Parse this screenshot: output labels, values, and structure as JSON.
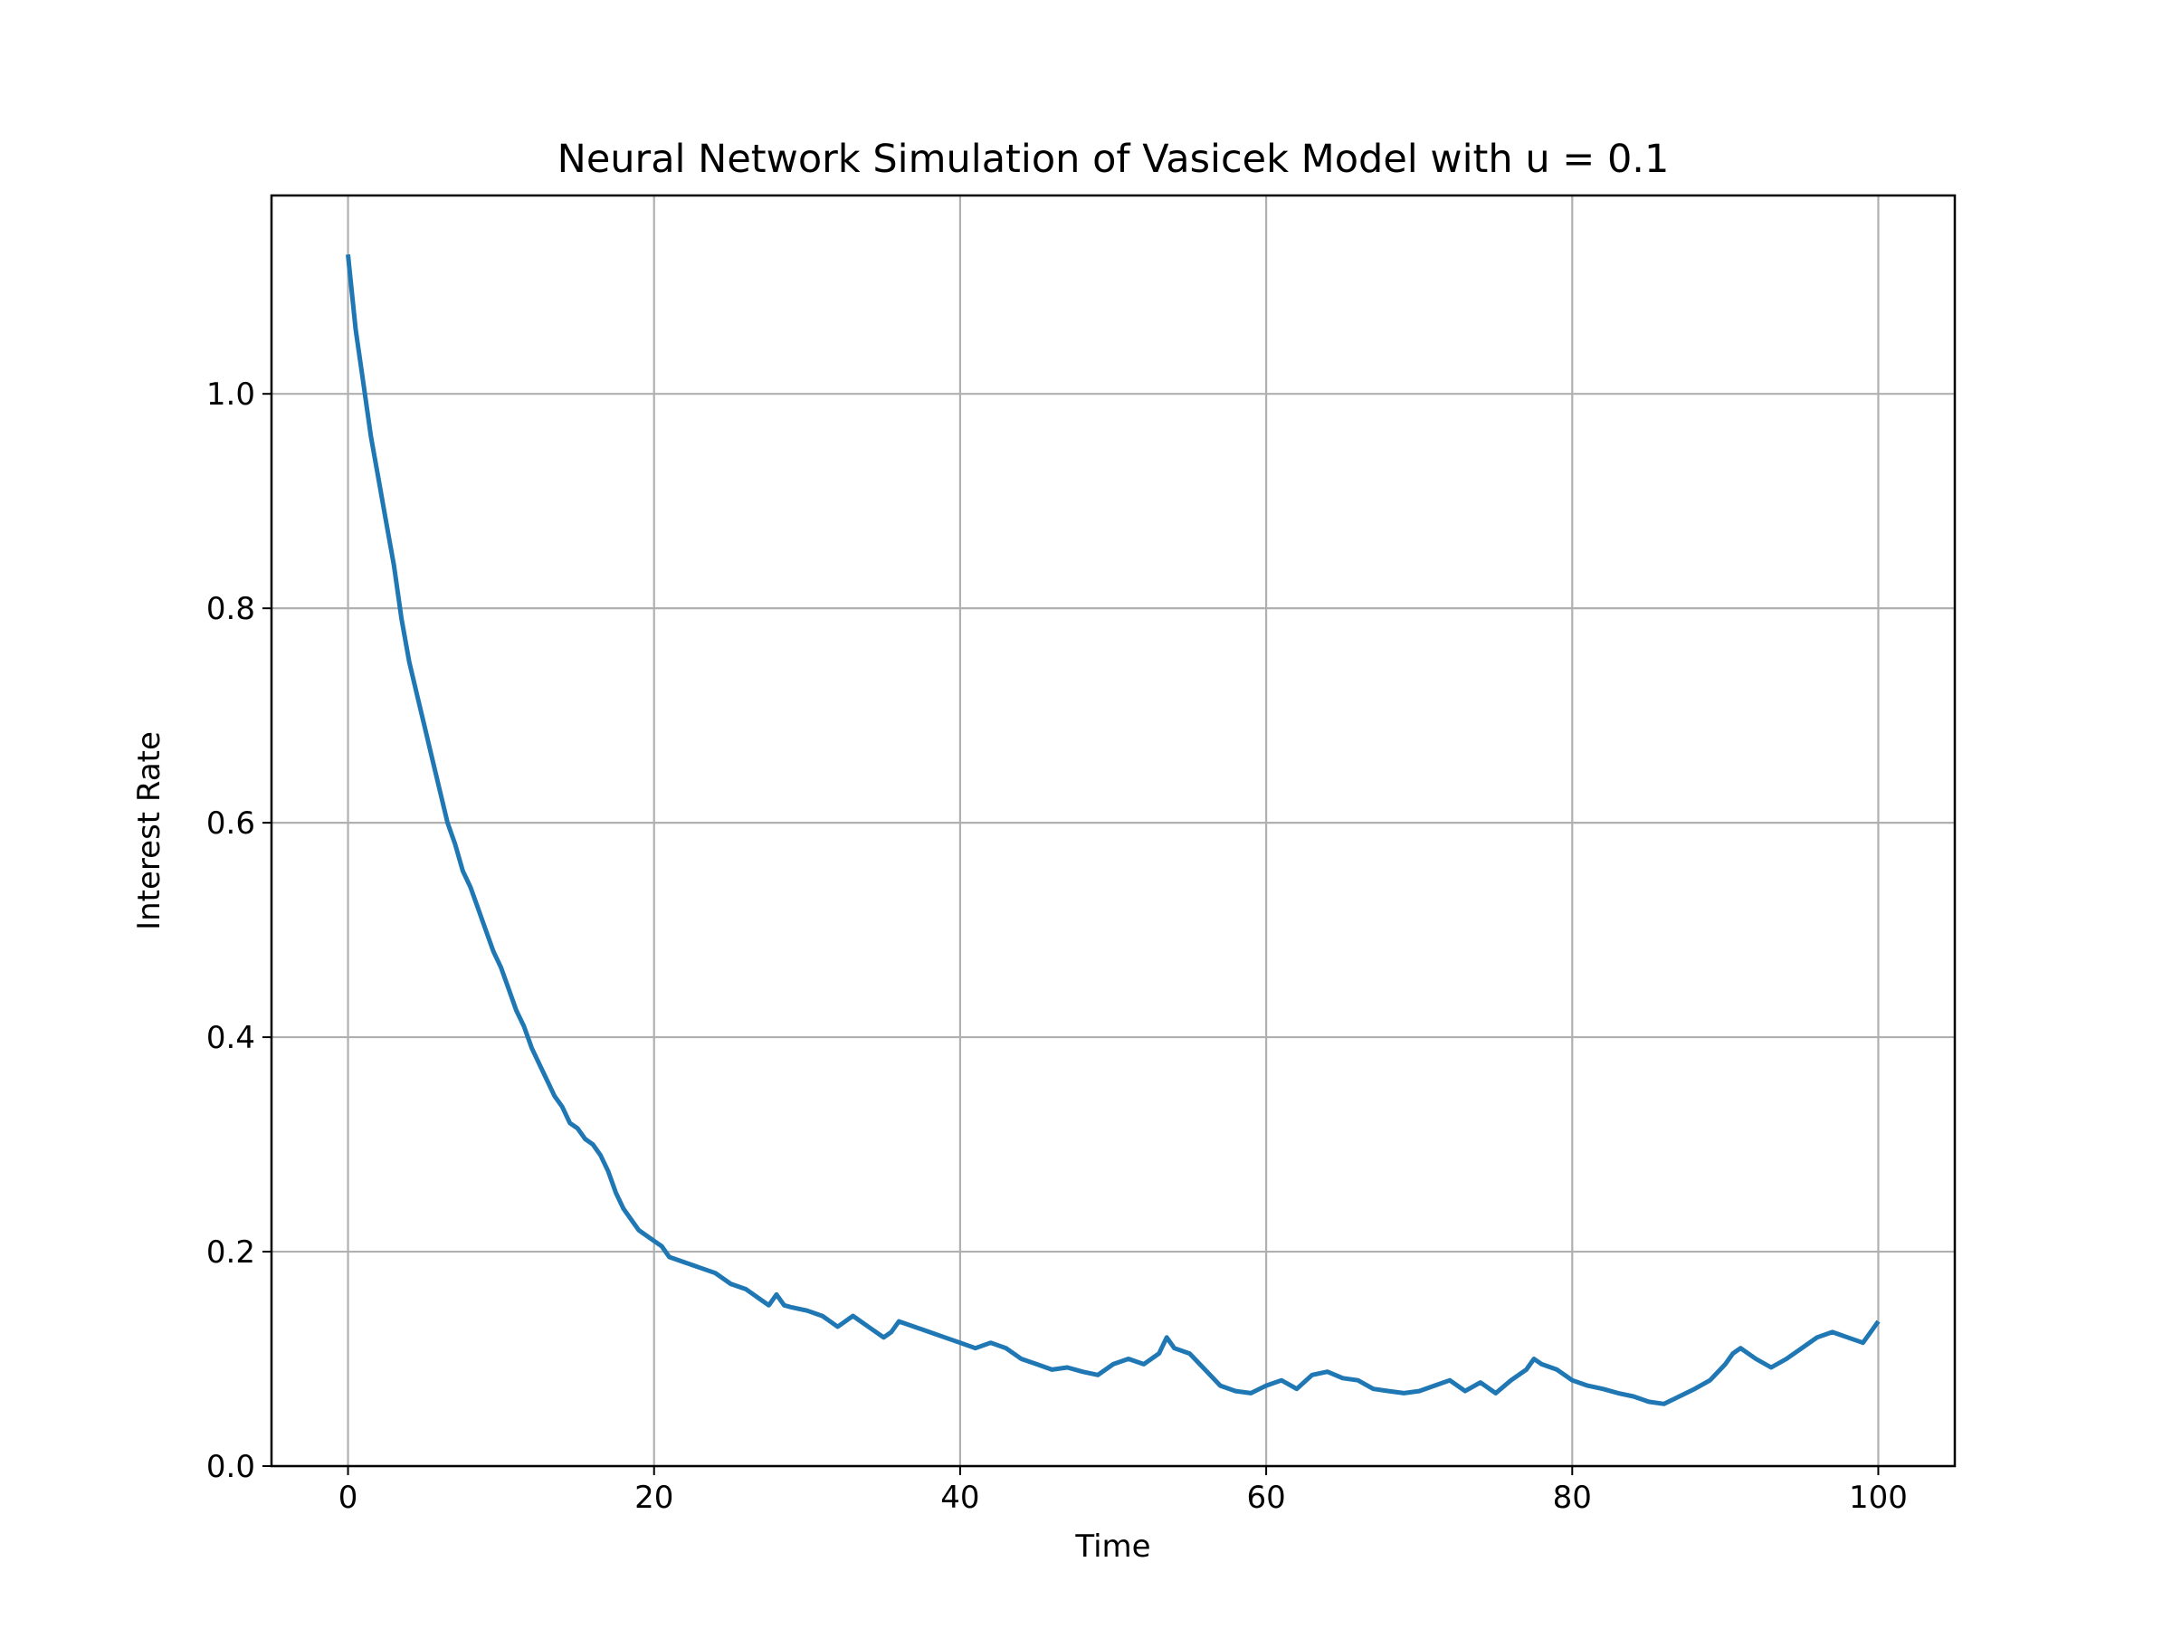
{
  "chart_data": {
    "type": "line",
    "title": "Neural Network Simulation of Vasicek Model with u = 0.1",
    "xlabel": "Time",
    "ylabel": "Interest Rate",
    "xlim": [
      -5,
      105
    ],
    "ylim": [
      0.0,
      1.185
    ],
    "xticks": [
      0,
      20,
      40,
      60,
      80,
      100
    ],
    "xtick_labels": [
      "0",
      "20",
      "40",
      "60",
      "80",
      "100"
    ],
    "yticks": [
      0.0,
      0.2,
      0.4,
      0.6,
      0.8,
      1.0
    ],
    "ytick_labels": [
      "0.0",
      "0.2",
      "0.4",
      "0.6",
      "0.8",
      "1.0"
    ],
    "grid": true,
    "series": [
      {
        "color": "#1f77b4",
        "x": [
          0,
          0.5,
          1,
          1.5,
          2,
          2.5,
          3,
          3.5,
          4,
          4.5,
          5,
          5.5,
          6,
          6.5,
          7,
          7.5,
          8,
          8.5,
          9,
          9.5,
          10,
          10.5,
          11,
          11.5,
          12,
          12.5,
          13,
          13.5,
          14,
          14.5,
          15,
          15.5,
          16,
          16.5,
          17,
          17.5,
          18,
          18.5,
          19,
          19.5,
          20,
          20.5,
          21,
          22,
          23,
          24,
          25,
          26,
          27,
          27.5,
          28,
          28.5,
          29,
          30,
          31,
          32,
          33,
          33.5,
          34,
          35,
          35.5,
          36,
          37,
          38,
          39,
          40,
          41,
          42,
          43,
          44,
          45,
          46,
          47,
          48,
          49,
          50,
          51,
          52,
          53,
          53.5,
          54,
          55,
          56,
          57,
          58,
          59,
          60,
          61,
          62,
          63,
          64,
          65,
          66,
          67,
          68,
          69,
          70,
          71,
          72,
          73,
          74,
          75,
          76,
          77,
          77.5,
          78,
          79,
          80,
          81,
          82,
          83,
          84,
          85,
          86,
          87,
          88,
          89,
          90,
          90.5,
          91,
          92,
          93,
          94,
          95,
          96,
          97,
          98,
          99,
          99.5,
          100
        ],
        "y": [
          1.13,
          1.06,
          1.01,
          0.96,
          0.92,
          0.88,
          0.84,
          0.79,
          0.75,
          0.72,
          0.69,
          0.66,
          0.63,
          0.6,
          0.58,
          0.555,
          0.54,
          0.52,
          0.5,
          0.48,
          0.465,
          0.445,
          0.425,
          0.41,
          0.39,
          0.375,
          0.36,
          0.345,
          0.335,
          0.32,
          0.315,
          0.305,
          0.3,
          0.29,
          0.275,
          0.255,
          0.24,
          0.23,
          0.22,
          0.215,
          0.21,
          0.205,
          0.195,
          0.19,
          0.185,
          0.18,
          0.17,
          0.165,
          0.155,
          0.15,
          0.16,
          0.15,
          0.148,
          0.145,
          0.14,
          0.13,
          0.14,
          0.135,
          0.13,
          0.12,
          0.125,
          0.135,
          0.13,
          0.125,
          0.12,
          0.115,
          0.11,
          0.115,
          0.11,
          0.1,
          0.095,
          0.09,
          0.092,
          0.088,
          0.085,
          0.095,
          0.1,
          0.095,
          0.105,
          0.12,
          0.11,
          0.105,
          0.09,
          0.075,
          0.07,
          0.068,
          0.075,
          0.08,
          0.072,
          0.085,
          0.088,
          0.082,
          0.08,
          0.072,
          0.07,
          0.068,
          0.07,
          0.075,
          0.08,
          0.07,
          0.078,
          0.068,
          0.08,
          0.09,
          0.1,
          0.095,
          0.09,
          0.08,
          0.075,
          0.072,
          0.068,
          0.065,
          0.06,
          0.058,
          0.065,
          0.072,
          0.08,
          0.095,
          0.105,
          0.11,
          0.1,
          0.092,
          0.1,
          0.11,
          0.12,
          0.125,
          0.12,
          0.115,
          0.125,
          0.135
        ]
      }
    ]
  }
}
